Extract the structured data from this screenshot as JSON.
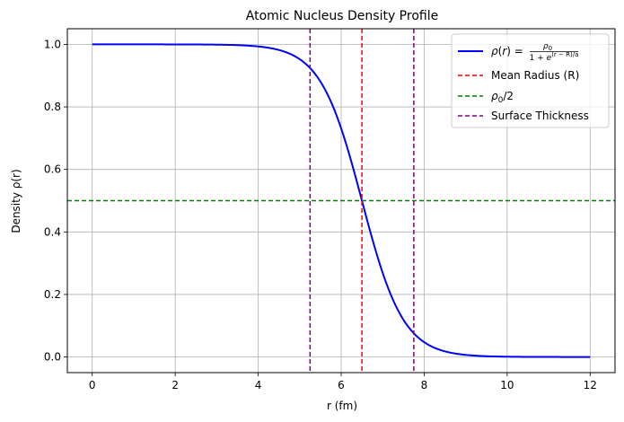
{
  "chart_data": {
    "type": "line",
    "title": "Atomic Nucleus Density Profile",
    "xlabel": "r (fm)",
    "ylabel": "Density ρ(r)",
    "xlim": [
      -0.6,
      12.6
    ],
    "ylim": [
      -0.05,
      1.05
    ],
    "xticks": [
      0,
      2,
      4,
      6,
      8,
      10,
      12
    ],
    "yticks": [
      0.0,
      0.2,
      0.4,
      0.6,
      0.8,
      1.0
    ],
    "xtick_labels": [
      "0",
      "2",
      "4",
      "6",
      "8",
      "10",
      "12"
    ],
    "ytick_labels": [
      "0.0",
      "0.2",
      "0.4",
      "0.6",
      "0.8",
      "1.0"
    ],
    "grid": true,
    "legend_position": "top-right",
    "woods_saxon": {
      "rho0": 1.0,
      "R": 6.5,
      "a": 0.5,
      "r_min": 0,
      "r_max": 12
    },
    "series": [
      {
        "name": "ρ(r) = ρ₀ / (1 + e^((r−R)/a))",
        "color": "#0000ff",
        "style": "solid",
        "kind": "curve"
      },
      {
        "name": "Mean Radius (R)",
        "color": "#ff0000",
        "style": "dashed",
        "kind": "vline",
        "x": 6.5
      },
      {
        "name": "ρ₀/2",
        "color": "#008000",
        "style": "dashed",
        "kind": "hline",
        "y": 0.5
      },
      {
        "name": "Surface Thickness",
        "color": "#800080",
        "style": "dashed",
        "kind": "vline",
        "x": [
          5.25,
          7.75
        ]
      }
    ]
  }
}
